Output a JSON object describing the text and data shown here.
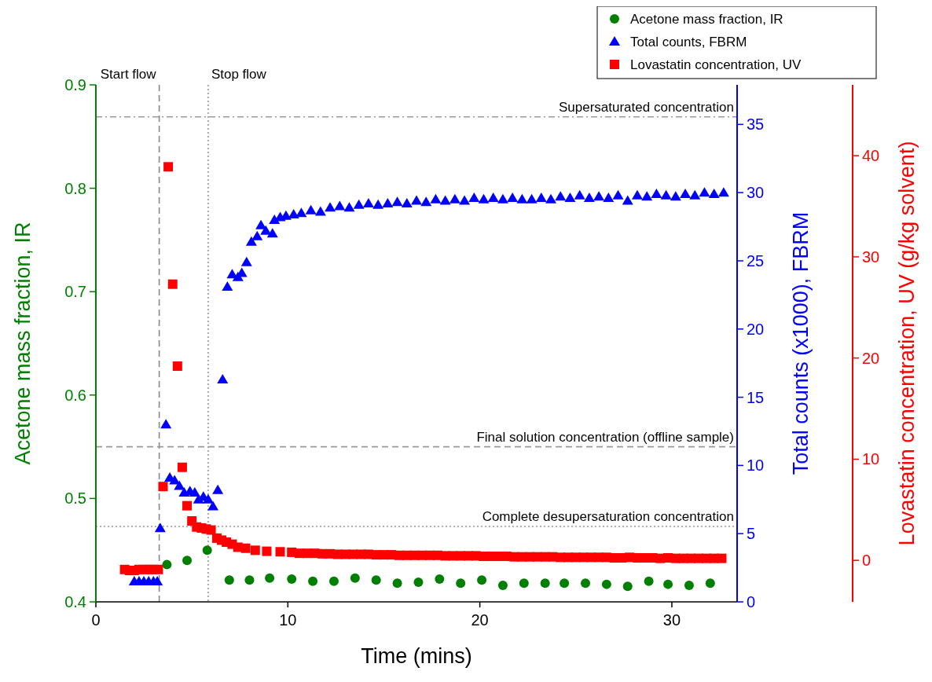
{
  "chart_data": {
    "type": "scatter",
    "xlabel": "Time (mins)",
    "ylabel": "Acetone mass fraction, IR",
    "y2label": "Total counts (x1000), FBRM",
    "y3label": "Lovastatin concentration, UV (g/kg solvent)",
    "xlim": [
      0,
      33.4
    ],
    "xticks": [
      0,
      10,
      20,
      30
    ],
    "ylim": [
      0.4,
      0.9
    ],
    "yticks": [
      0.4,
      0.5,
      0.6,
      0.7,
      0.8,
      0.9
    ],
    "y2lim": [
      0,
      37.9
    ],
    "y2ticks": [
      0,
      5,
      10,
      15,
      20,
      25,
      30,
      35
    ],
    "y3lim": [
      -4.1,
      47
    ],
    "y3ticks": [
      0,
      10,
      20,
      30,
      40
    ],
    "legend": "top right",
    "grid": false,
    "ref_lines": [
      {
        "axis": "x",
        "value": 3.3,
        "label": "Start flow",
        "color": "#888888",
        "line_style": "dashed"
      },
      {
        "axis": "x",
        "value": 5.85,
        "label": "Stop flow",
        "color": "#999999",
        "line_style": "dotted"
      },
      {
        "axis": "y",
        "value": 0.869,
        "label": "Supersaturated concentration",
        "color": "#999999",
        "line_style": "dashdot"
      },
      {
        "axis": "y",
        "value": 0.55,
        "label": "Final solution concentration (offline sample)",
        "color": "#999999",
        "line_style": "dashed"
      },
      {
        "axis": "y",
        "value": 0.473,
        "label": "Complete desupersaturation concentration",
        "color": "#999999",
        "line_style": "dotted"
      }
    ],
    "series": [
      {
        "name": "Acetone mass fraction, IR",
        "color": "#008000",
        "marker": "circle",
        "x": [
          3.7,
          4.75,
          5.8,
          6.95,
          8.0,
          9.05,
          10.2,
          11.3,
          12.4,
          13.5,
          14.6,
          15.7,
          16.8,
          17.9,
          19.0,
          20.1,
          21.2,
          22.3,
          23.4,
          24.4,
          25.5,
          26.6,
          27.7,
          28.8,
          29.8,
          30.9,
          32.0
        ],
        "values": [
          0.436,
          0.44,
          0.45,
          0.421,
          0.421,
          0.423,
          0.422,
          0.42,
          0.42,
          0.423,
          0.421,
          0.418,
          0.419,
          0.422,
          0.418,
          0.421,
          0.416,
          0.418,
          0.418,
          0.418,
          0.418,
          0.417,
          0.415,
          0.42,
          0.417,
          0.416,
          0.418
        ]
      },
      {
        "name": "Total counts, FBRM",
        "color": "#0000ff",
        "marker": "triangle",
        "axis": "y2",
        "x": [
          2.0,
          2.25,
          2.5,
          2.75,
          3.0,
          3.2,
          3.35,
          3.65,
          3.85,
          4.1,
          4.35,
          4.6,
          4.9,
          5.15,
          5.35,
          5.6,
          5.85,
          6.1,
          6.35,
          6.6,
          6.85,
          7.1,
          7.4,
          7.6,
          7.85,
          8.1,
          8.4,
          8.6,
          8.85,
          9.2,
          9.3,
          9.6,
          9.9,
          10.3,
          10.7,
          11.2,
          11.7,
          12.2,
          12.7,
          13.2,
          13.7,
          14.2,
          14.7,
          15.2,
          15.7,
          16.2,
          16.7,
          17.2,
          17.7,
          18.2,
          18.7,
          19.2,
          19.7,
          20.2,
          20.7,
          21.2,
          21.7,
          22.2,
          22.7,
          23.2,
          23.7,
          24.2,
          24.7,
          25.2,
          25.7,
          26.2,
          26.7,
          27.2,
          27.7,
          28.2,
          28.7,
          29.2,
          29.7,
          30.2,
          30.7,
          31.2,
          31.7,
          32.2,
          32.7
        ],
        "values": [
          1.5,
          1.5,
          1.5,
          1.5,
          1.5,
          1.5,
          5.4,
          13.0,
          9.1,
          8.9,
          8.5,
          8.0,
          8.1,
          8.0,
          7.5,
          7.7,
          7.5,
          7.0,
          8.2,
          16.3,
          23.1,
          24.0,
          23.8,
          24.1,
          24.9,
          26.4,
          26.8,
          27.6,
          27.2,
          27.0,
          28.0,
          28.2,
          28.3,
          28.4,
          28.5,
          28.7,
          28.6,
          28.9,
          29.0,
          28.9,
          29.1,
          29.2,
          29.1,
          29.2,
          29.3,
          29.2,
          29.4,
          29.3,
          29.5,
          29.4,
          29.5,
          29.4,
          29.6,
          29.5,
          29.6,
          29.5,
          29.6,
          29.5,
          29.5,
          29.6,
          29.5,
          29.7,
          29.6,
          29.8,
          29.6,
          29.7,
          29.6,
          29.8,
          29.4,
          29.8,
          29.7,
          29.9,
          29.8,
          29.7,
          29.9,
          29.8,
          30.0,
          29.9,
          30.0
        ]
      },
      {
        "name": "Lovastatin concentration, UV",
        "color": "#ff0000",
        "marker": "square",
        "axis": "y3",
        "x": [
          1.5,
          1.75,
          2.0,
          2.25,
          2.5,
          2.75,
          3.0,
          3.25,
          3.5,
          3.77,
          4.0,
          4.25,
          4.5,
          4.75,
          5.0,
          5.25,
          5.5,
          5.75,
          6.0,
          6.3,
          6.55,
          6.8,
          7.1,
          7.4,
          7.8,
          8.3,
          8.9,
          9.6,
          10.2,
          10.6,
          11.0,
          11.4,
          11.8,
          12.2,
          12.6,
          13.0,
          13.4,
          13.8,
          14.2,
          14.6,
          15.0,
          15.4,
          15.8,
          16.2,
          16.6,
          17.0,
          17.4,
          17.8,
          18.2,
          18.6,
          19.0,
          19.4,
          19.8,
          20.2,
          20.6,
          21.0,
          21.4,
          21.8,
          22.2,
          22.6,
          23.0,
          23.4,
          23.8,
          24.2,
          24.6,
          25.0,
          25.4,
          25.8,
          26.2,
          26.6,
          27.0,
          27.4,
          27.8,
          28.2,
          28.6,
          29.0,
          29.4,
          29.8,
          30.2,
          30.6,
          31.0,
          31.4,
          31.8,
          32.2,
          32.6
        ],
        "values": [
          -0.9,
          -1.0,
          -1.0,
          -0.9,
          -0.9,
          -0.9,
          -0.9,
          -0.9,
          7.3,
          38.9,
          27.3,
          19.2,
          9.2,
          5.4,
          3.9,
          3.3,
          3.2,
          3.1,
          3.0,
          2.2,
          2.0,
          1.8,
          1.6,
          1.3,
          1.2,
          1.0,
          0.9,
          0.85,
          0.8,
          0.7,
          0.7,
          0.7,
          0.65,
          0.65,
          0.6,
          0.6,
          0.6,
          0.6,
          0.6,
          0.55,
          0.55,
          0.55,
          0.5,
          0.5,
          0.5,
          0.5,
          0.5,
          0.5,
          0.45,
          0.45,
          0.45,
          0.45,
          0.45,
          0.4,
          0.4,
          0.4,
          0.4,
          0.35,
          0.35,
          0.35,
          0.35,
          0.35,
          0.35,
          0.3,
          0.3,
          0.3,
          0.3,
          0.3,
          0.3,
          0.3,
          0.25,
          0.25,
          0.3,
          0.25,
          0.25,
          0.25,
          0.2,
          0.25,
          0.2,
          0.2,
          0.2,
          0.2,
          0.2,
          0.2,
          0.2
        ]
      }
    ]
  }
}
